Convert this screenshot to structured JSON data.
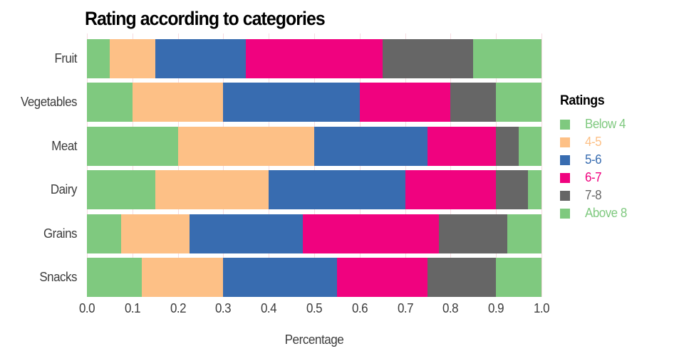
{
  "title": "Rating according to categories",
  "xlabel": "Percentage",
  "colors": {
    "grid": "#f6dbe0",
    "axis_text": "#3d3d3d",
    "background": "#ffffff"
  },
  "legend": {
    "title": "Ratings",
    "items": [
      {
        "label": "Below 4",
        "color": "#7fc97f"
      },
      {
        "label": "4-5",
        "color": "#fdc086"
      },
      {
        "label": "5-6",
        "color": "#386cb0"
      },
      {
        "label": "6-7",
        "color": "#f0027f"
      },
      {
        "label": "7-8",
        "color": "#666666"
      },
      {
        "label": "Above 8",
        "color": "#7fc97f"
      }
    ]
  },
  "chart_data": {
    "type": "bar",
    "orientation": "horizontal-stacked",
    "title": "Rating according to categories",
    "xlabel": "Percentage",
    "ylabel": "",
    "xlim": [
      0,
      1
    ],
    "grid": "vertical light-pink gridlines every 0.1",
    "legend_position": "right",
    "xticks": [
      "0.0",
      "0.1",
      "0.2",
      "0.3",
      "0.4",
      "0.5",
      "0.6",
      "0.7",
      "0.8",
      "0.9",
      "1.0"
    ],
    "categories": [
      "Fruit",
      "Vegetables",
      "Meat",
      "Dairy",
      "Grains",
      "Snacks"
    ],
    "series": [
      {
        "name": "Below 4",
        "color": "#7fc97f",
        "values": [
          0.05,
          0.1,
          0.2,
          0.15,
          0.075,
          0.12
        ]
      },
      {
        "name": "4-5",
        "color": "#fdc086",
        "values": [
          0.1,
          0.2,
          0.3,
          0.25,
          0.15,
          0.18
        ]
      },
      {
        "name": "5-6",
        "color": "#386cb0",
        "values": [
          0.2,
          0.3,
          0.25,
          0.3,
          0.25,
          0.25
        ]
      },
      {
        "name": "6-7",
        "color": "#f0027f",
        "values": [
          0.3,
          0.2,
          0.15,
          0.2,
          0.3,
          0.2
        ]
      },
      {
        "name": "7-8",
        "color": "#666666",
        "values": [
          0.2,
          0.1,
          0.05,
          0.07,
          0.15,
          0.15
        ]
      },
      {
        "name": "Above 8",
        "color": "#7fc97f",
        "values": [
          0.15,
          0.1,
          0.05,
          0.03,
          0.075,
          0.1
        ]
      }
    ]
  }
}
